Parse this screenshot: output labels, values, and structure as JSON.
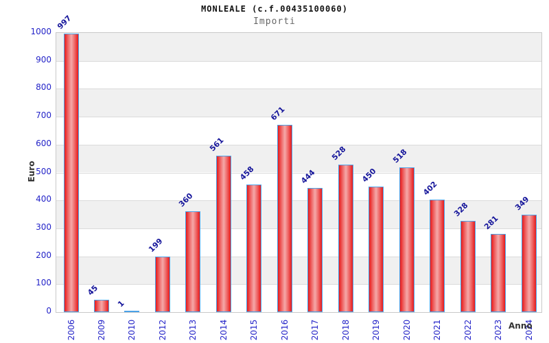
{
  "header": {
    "title": "MONLEALE (c.f.00435100060)",
    "subtitle": "Importi"
  },
  "chart_data": {
    "type": "bar",
    "title": "MONLEALE (c.f.00435100060)",
    "subtitle": "Importi",
    "xlabel": "Anno",
    "ylabel": "Euro",
    "categories": [
      "2006",
      "2009",
      "2010",
      "2012",
      "2013",
      "2014",
      "2015",
      "2016",
      "2017",
      "2018",
      "2019",
      "2020",
      "2021",
      "2022",
      "2023",
      "2024"
    ],
    "values": [
      997,
      45,
      1,
      199,
      360,
      561,
      458,
      671,
      444,
      528,
      450,
      518,
      402,
      328,
      281,
      349
    ],
    "ylim": [
      0,
      1000
    ],
    "ytick_step": 100,
    "yticks": [
      0,
      100,
      200,
      300,
      400,
      500,
      600,
      700,
      800,
      900,
      1000
    ],
    "grid": true,
    "band_alternating": true,
    "legend_position": "none",
    "colors": {
      "bar_fill_edge": "#e81a1a",
      "bar_fill_center": "#f5a9a9",
      "bar_border": "#4aa2e8",
      "value_label": "#16169b",
      "tick_label": "#2323c8",
      "band_gray": "#f0f0f0",
      "gridline": "#dadada",
      "axis_title": "#333333",
      "title": "#111111",
      "subtitle": "#666666"
    }
  }
}
